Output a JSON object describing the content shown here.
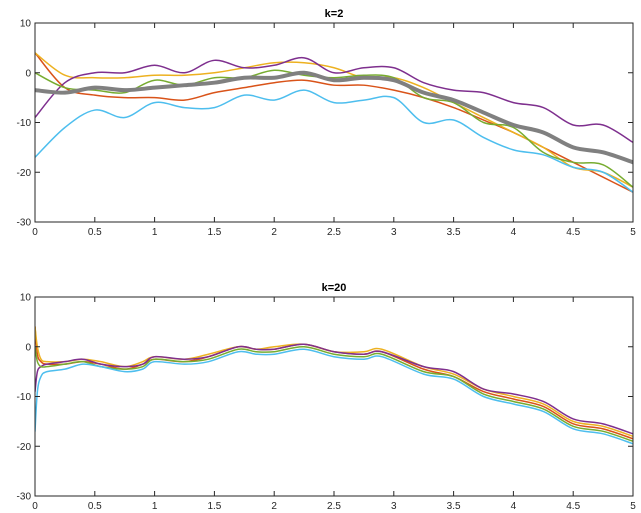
{
  "chart_data": [
    {
      "type": "line",
      "title": "k=2",
      "xlabel": "",
      "ylabel": "",
      "xlim": [
        0,
        5
      ],
      "ylim": [
        -30,
        10
      ],
      "xticks": [
        "0",
        "0.5",
        "1",
        "1.5",
        "2",
        "2.5",
        "3",
        "3.5",
        "4",
        "4.5",
        "5"
      ],
      "yticks": [
        "10",
        "0",
        "-10",
        "-20",
        "-30"
      ],
      "grid": false,
      "x": [
        0,
        0.25,
        0.5,
        0.75,
        1,
        1.25,
        1.5,
        1.75,
        2,
        2.25,
        2.5,
        2.75,
        3,
        3.25,
        3.5,
        3.75,
        4,
        4.25,
        4.5,
        4.75,
        5
      ],
      "series": [
        {
          "color": "#D95319",
          "width": 1.5,
          "values": [
            4,
            -3,
            -4.5,
            -5,
            -5,
            -5.5,
            -4,
            -3,
            -2,
            -1.5,
            -2.5,
            -2.5,
            -3.5,
            -5,
            -7,
            -9.5,
            -12,
            -15,
            -18,
            -21,
            -24
          ]
        },
        {
          "color": "#EDB120",
          "width": 1.5,
          "values": [
            4,
            -0.5,
            -1,
            -1,
            -0.5,
            -0.5,
            0,
            1,
            2,
            2,
            1,
            -1,
            -1,
            -3,
            -6,
            -9,
            -12,
            -15,
            -19,
            -20,
            -23
          ]
        },
        {
          "color": "#7E2F8E",
          "width": 1.5,
          "values": [
            -9,
            -2,
            0,
            0,
            1.5,
            0,
            2.5,
            1,
            1.5,
            3,
            0,
            1,
            1,
            -2,
            -3.5,
            -4,
            -6,
            -7,
            -10.5,
            -10.5,
            -14
          ]
        },
        {
          "color": "#77AC30",
          "width": 1.5,
          "values": [
            0,
            -3,
            -3.5,
            -4,
            -1.5,
            -2.5,
            -1,
            -1,
            0.5,
            -0.5,
            -1,
            -0.5,
            -1,
            -5,
            -6,
            -10,
            -11,
            -16,
            -18,
            -18.5,
            -23
          ]
        },
        {
          "color": "#4DBEEE",
          "width": 1.5,
          "values": [
            -17,
            -11,
            -7.5,
            -9,
            -6,
            -7,
            -7,
            -4.5,
            -5.5,
            -3.5,
            -6,
            -5.5,
            -5,
            -10,
            -9.5,
            -13,
            -15.5,
            -16.5,
            -19,
            -20,
            -24
          ]
        },
        {
          "color": "#808080",
          "width": 4,
          "values": [
            -3.5,
            -4,
            -3,
            -3.5,
            -3,
            -2.5,
            -2,
            -1,
            -1,
            0,
            -1.5,
            -1,
            -1.5,
            -4,
            -5.5,
            -8,
            -10.5,
            -12,
            -15,
            -16,
            -18
          ]
        }
      ]
    },
    {
      "type": "line",
      "title": "k=20",
      "xlabel": "",
      "ylabel": "",
      "xlim": [
        0,
        5
      ],
      "ylim": [
        -30,
        10
      ],
      "xticks": [
        "0",
        "0.5",
        "1",
        "1.5",
        "2",
        "2.5",
        "3",
        "3.5",
        "4",
        "4.5",
        "5"
      ],
      "yticks": [
        "10",
        "0",
        "-10",
        "-20",
        "-30"
      ],
      "grid": false,
      "x": [
        0,
        0.02,
        0.05,
        0.1,
        0.25,
        0.4,
        0.55,
        0.75,
        0.9,
        1,
        1.25,
        1.45,
        1.7,
        1.85,
        2,
        2.25,
        2.5,
        2.75,
        2.9,
        3.25,
        3.5,
        3.75,
        4,
        4.25,
        4.5,
        4.75,
        5
      ],
      "series": [
        {
          "color": "#D95319",
          "width": 1.5,
          "values": [
            4,
            -1.5,
            -3,
            -3.5,
            -3.5,
            -3,
            -3.5,
            -4.5,
            -3.5,
            -2.5,
            -3,
            -2,
            0,
            -0.5,
            -0.5,
            0.5,
            -1,
            -1.5,
            -1,
            -4.5,
            -6,
            -9,
            -10.5,
            -12,
            -15.5,
            -16.5,
            -18.5
          ]
        },
        {
          "color": "#EDB120",
          "width": 1.5,
          "values": [
            4,
            0,
            -2.5,
            -3,
            -3,
            -2.5,
            -3,
            -4,
            -3,
            -2,
            -2.5,
            -1.5,
            0,
            -0.5,
            0,
            0.5,
            -1,
            -1,
            -0.5,
            -4,
            -5.5,
            -8.5,
            -10,
            -11.5,
            -15,
            -16,
            -18
          ]
        },
        {
          "color": "#7E2F8E",
          "width": 1.5,
          "values": [
            -9,
            -5,
            -4,
            -3.5,
            -3,
            -2.5,
            -3.5,
            -4,
            -3.5,
            -2,
            -2.5,
            -2,
            0,
            -0.5,
            -0.5,
            0.5,
            -1,
            -1.5,
            -1,
            -4,
            -5,
            -8.5,
            -9.5,
            -11,
            -14.5,
            -15.5,
            -17.5
          ]
        },
        {
          "color": "#77AC30",
          "width": 1.5,
          "values": [
            0,
            -3,
            -4,
            -4,
            -3.5,
            -3,
            -4,
            -4.5,
            -4,
            -2.5,
            -3,
            -2.5,
            -0.5,
            -1,
            -1,
            0,
            -1.5,
            -2,
            -1.5,
            -5,
            -6,
            -9.5,
            -11,
            -12.5,
            -16,
            -17,
            -19
          ]
        },
        {
          "color": "#4DBEEE",
          "width": 1.5,
          "values": [
            -17,
            -9,
            -6,
            -5,
            -4.5,
            -3.5,
            -4,
            -5,
            -4.5,
            -3,
            -3.5,
            -3,
            -1,
            -1.5,
            -1.5,
            -0.5,
            -2,
            -2.5,
            -2,
            -5.5,
            -6.5,
            -10,
            -11.5,
            -13,
            -16.5,
            -17.5,
            -19.5
          ]
        }
      ]
    }
  ]
}
